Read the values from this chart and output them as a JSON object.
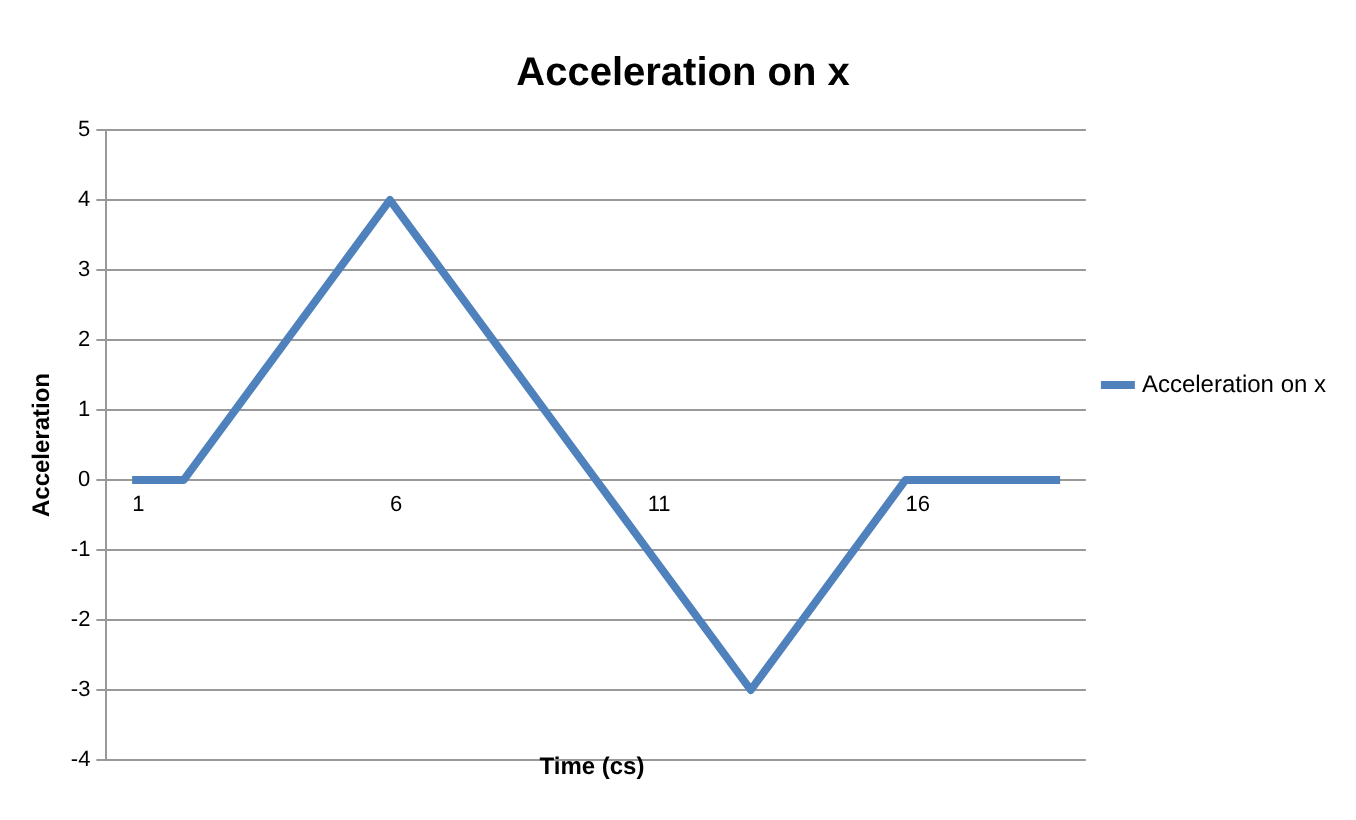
{
  "chart_data": {
    "type": "line",
    "title": "Acceleration on x",
    "xlabel": "Time (cs)",
    "ylabel": "Acceleration",
    "categories": [
      "1",
      null,
      null,
      null,
      null,
      "6",
      null,
      null,
      null,
      null,
      "11",
      null,
      null,
      null,
      null,
      "16",
      null,
      null,
      null
    ],
    "series": [
      {
        "name": "Acceleration on x",
        "color": "#4f81bd",
        "values": [
          0,
          0,
          1,
          2,
          3,
          4,
          3,
          2,
          1,
          0,
          -1,
          -2,
          -3,
          -2,
          -1,
          0,
          0,
          0,
          0
        ]
      }
    ],
    "ylim": [
      -4,
      5
    ],
    "yticks": [
      -4,
      -3,
      -2,
      -1,
      0,
      1,
      2,
      3,
      4,
      5
    ],
    "grid": "y",
    "legend": "right",
    "marker": "none",
    "line_style": "solid"
  }
}
